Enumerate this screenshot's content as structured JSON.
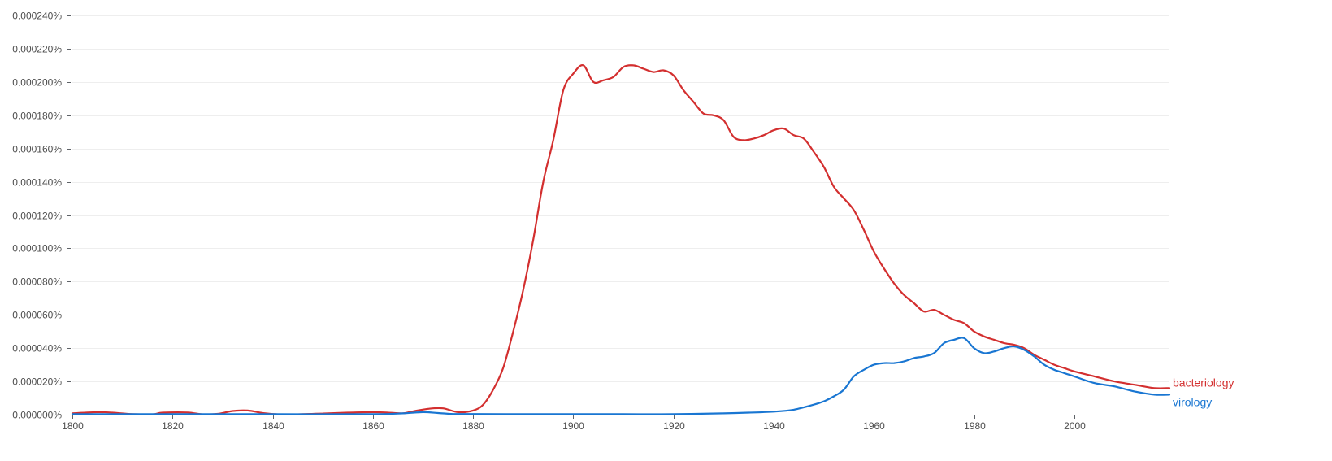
{
  "chart_data": {
    "type": "line",
    "title": "",
    "xlabel": "",
    "ylabel": "",
    "xlim": [
      1800,
      2019
    ],
    "ylim": [
      0,
      0.00024
    ],
    "grid": true,
    "legend": "inline-right-end",
    "x_ticks": [
      1800,
      1820,
      1840,
      1860,
      1880,
      1900,
      1920,
      1940,
      1960,
      1980,
      2000
    ],
    "x_tick_labels": [
      "1800",
      "1820",
      "1840",
      "1860",
      "1880",
      "1900",
      "1920",
      "1940",
      "1960",
      "1980",
      "2000"
    ],
    "y_ticks": [
      0,
      2e-05,
      4e-05,
      6e-05,
      8e-05,
      0.0001,
      0.00012,
      0.00014,
      0.00016,
      0.00018,
      0.0002,
      0.00022,
      0.00024
    ],
    "y_tick_labels": [
      "0.000000%",
      "0.000020%",
      "0.000040%",
      "0.000060%",
      "0.000080%",
      "0.000100%",
      "0.000120%",
      "0.000140%",
      "0.000160%",
      "0.000180%",
      "0.000200%",
      "0.000220%",
      "0.000240%"
    ],
    "series": [
      {
        "name": "bacteriology",
        "color": "#d32f2f",
        "points": [
          [
            1800,
            8e-07
          ],
          [
            1805,
            1.5e-06
          ],
          [
            1808,
            1.2e-06
          ],
          [
            1812,
            3e-07
          ],
          [
            1816,
            2e-07
          ],
          [
            1818,
            1.2e-06
          ],
          [
            1823,
            1.3e-06
          ],
          [
            1826,
            2e-07
          ],
          [
            1829,
            5e-07
          ],
          [
            1832,
            2.2e-06
          ],
          [
            1835,
            2.5e-06
          ],
          [
            1838,
            1e-06
          ],
          [
            1841,
            2e-07
          ],
          [
            1845,
            2e-07
          ],
          [
            1850,
            7e-07
          ],
          [
            1855,
            1.2e-06
          ],
          [
            1860,
            1.5e-06
          ],
          [
            1863,
            1.2e-06
          ],
          [
            1866,
            8e-07
          ],
          [
            1868,
            2e-06
          ],
          [
            1871,
            3.5e-06
          ],
          [
            1874,
            3.8e-06
          ],
          [
            1877,
            1.5e-06
          ],
          [
            1880,
            2.5e-06
          ],
          [
            1882,
            6e-06
          ],
          [
            1884,
            1.5e-05
          ],
          [
            1886,
            2.8e-05
          ],
          [
            1888,
            5e-05
          ],
          [
            1890,
            7.5e-05
          ],
          [
            1892,
            0.000105
          ],
          [
            1894,
            0.00014
          ],
          [
            1896,
            0.000165
          ],
          [
            1898,
            0.000195
          ],
          [
            1900,
            0.000205
          ],
          [
            1902,
            0.00021
          ],
          [
            1904,
            0.0002
          ],
          [
            1906,
            0.000201
          ],
          [
            1908,
            0.000203
          ],
          [
            1910,
            0.000209
          ],
          [
            1912,
            0.00021
          ],
          [
            1914,
            0.000208
          ],
          [
            1916,
            0.000206
          ],
          [
            1918,
            0.000207
          ],
          [
            1920,
            0.000204
          ],
          [
            1922,
            0.000195
          ],
          [
            1924,
            0.000188
          ],
          [
            1926,
            0.000181
          ],
          [
            1928,
            0.00018
          ],
          [
            1930,
            0.000177
          ],
          [
            1932,
            0.000167
          ],
          [
            1934,
            0.000165
          ],
          [
            1936,
            0.000166
          ],
          [
            1938,
            0.000168
          ],
          [
            1940,
            0.000171
          ],
          [
            1942,
            0.000172
          ],
          [
            1944,
            0.000168
          ],
          [
            1946,
            0.000166
          ],
          [
            1948,
            0.000158
          ],
          [
            1950,
            0.000149
          ],
          [
            1952,
            0.000137
          ],
          [
            1954,
            0.00013
          ],
          [
            1956,
            0.000123
          ],
          [
            1958,
            0.000111
          ],
          [
            1960,
            9.8e-05
          ],
          [
            1962,
            8.8e-05
          ],
          [
            1964,
            7.9e-05
          ],
          [
            1966,
            7.2e-05
          ],
          [
            1968,
            6.7e-05
          ],
          [
            1970,
            6.2e-05
          ],
          [
            1972,
            6.3e-05
          ],
          [
            1974,
            6e-05
          ],
          [
            1976,
            5.7e-05
          ],
          [
            1978,
            5.5e-05
          ],
          [
            1980,
            5e-05
          ],
          [
            1982,
            4.7e-05
          ],
          [
            1984,
            4.5e-05
          ],
          [
            1986,
            4.3e-05
          ],
          [
            1988,
            4.2e-05
          ],
          [
            1990,
            4e-05
          ],
          [
            1992,
            3.6e-05
          ],
          [
            1994,
            3.3e-05
          ],
          [
            1996,
            3e-05
          ],
          [
            1998,
            2.8e-05
          ],
          [
            2000,
            2.6e-05
          ],
          [
            2004,
            2.3e-05
          ],
          [
            2008,
            2e-05
          ],
          [
            2012,
            1.8e-05
          ],
          [
            2016,
            1.6e-05
          ],
          [
            2019,
            1.6e-05
          ]
        ]
      },
      {
        "name": "virology",
        "color": "#1976d2",
        "points": [
          [
            1800,
            3e-07
          ],
          [
            1820,
            3e-07
          ],
          [
            1840,
            3e-07
          ],
          [
            1860,
            3e-07
          ],
          [
            1866,
            8e-07
          ],
          [
            1870,
            1.5e-06
          ],
          [
            1873,
            1e-06
          ],
          [
            1876,
            4e-07
          ],
          [
            1880,
            4e-07
          ],
          [
            1890,
            3e-07
          ],
          [
            1900,
            3e-07
          ],
          [
            1910,
            3e-07
          ],
          [
            1920,
            3e-07
          ],
          [
            1930,
            8e-07
          ],
          [
            1935,
            1.2e-06
          ],
          [
            1940,
            1.8e-06
          ],
          [
            1944,
            3e-06
          ],
          [
            1948,
            6e-06
          ],
          [
            1950,
            8e-06
          ],
          [
            1952,
            1.1e-05
          ],
          [
            1954,
            1.5e-05
          ],
          [
            1956,
            2.3e-05
          ],
          [
            1958,
            2.7e-05
          ],
          [
            1960,
            3e-05
          ],
          [
            1962,
            3.1e-05
          ],
          [
            1964,
            3.1e-05
          ],
          [
            1966,
            3.2e-05
          ],
          [
            1968,
            3.4e-05
          ],
          [
            1970,
            3.5e-05
          ],
          [
            1972,
            3.7e-05
          ],
          [
            1974,
            4.3e-05
          ],
          [
            1976,
            4.5e-05
          ],
          [
            1978,
            4.6e-05
          ],
          [
            1980,
            4e-05
          ],
          [
            1982,
            3.7e-05
          ],
          [
            1984,
            3.8e-05
          ],
          [
            1986,
            4e-05
          ],
          [
            1988,
            4.1e-05
          ],
          [
            1990,
            3.9e-05
          ],
          [
            1992,
            3.5e-05
          ],
          [
            1994,
            3e-05
          ],
          [
            1996,
            2.7e-05
          ],
          [
            1998,
            2.5e-05
          ],
          [
            2000,
            2.3e-05
          ],
          [
            2004,
            1.9e-05
          ],
          [
            2008,
            1.7e-05
          ],
          [
            2012,
            1.4e-05
          ],
          [
            2016,
            1.2e-05
          ],
          [
            2019,
            1.2e-05
          ]
        ]
      }
    ]
  }
}
